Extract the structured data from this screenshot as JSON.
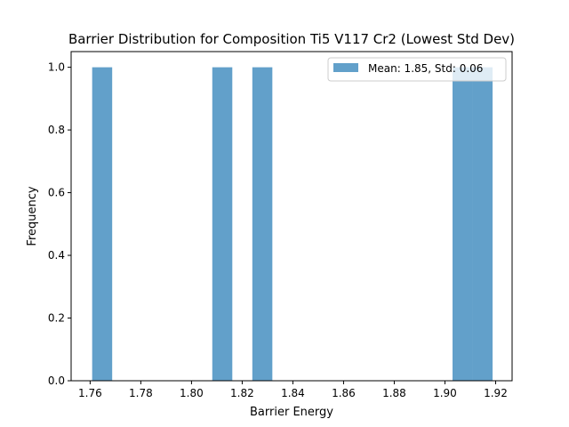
{
  "chart_data": {
    "type": "bar",
    "title": "Barrier Distribution for Composition Ti5 V117 Cr2 (Lowest Std Dev)",
    "xlabel": "Barrier Energy",
    "ylabel": "Frequency",
    "xlim": [
      1.7525,
      1.9265
    ],
    "ylim": [
      0.0,
      1.05
    ],
    "x_ticks": [
      "1.76",
      "1.78",
      "1.80",
      "1.82",
      "1.84",
      "1.86",
      "1.88",
      "1.90",
      "1.92"
    ],
    "y_ticks": [
      "0.0",
      "0.2",
      "0.4",
      "0.6",
      "0.8",
      "1.0"
    ],
    "legend_position": "upper right",
    "bar_color": "#1f77b4",
    "bar_alpha": 0.7,
    "series": [
      {
        "name": "Mean: 1.85, Std: 0.06",
        "bins": [
          {
            "x0": 1.7608,
            "x1": 1.7687,
            "value": 1
          },
          {
            "x0": 1.8082,
            "x1": 1.8161,
            "value": 1
          },
          {
            "x0": 1.824,
            "x1": 1.8319,
            "value": 1
          },
          {
            "x0": 1.903,
            "x1": 1.9109,
            "value": 1
          },
          {
            "x0": 1.9109,
            "x1": 1.9188,
            "value": 1
          }
        ]
      }
    ]
  }
}
